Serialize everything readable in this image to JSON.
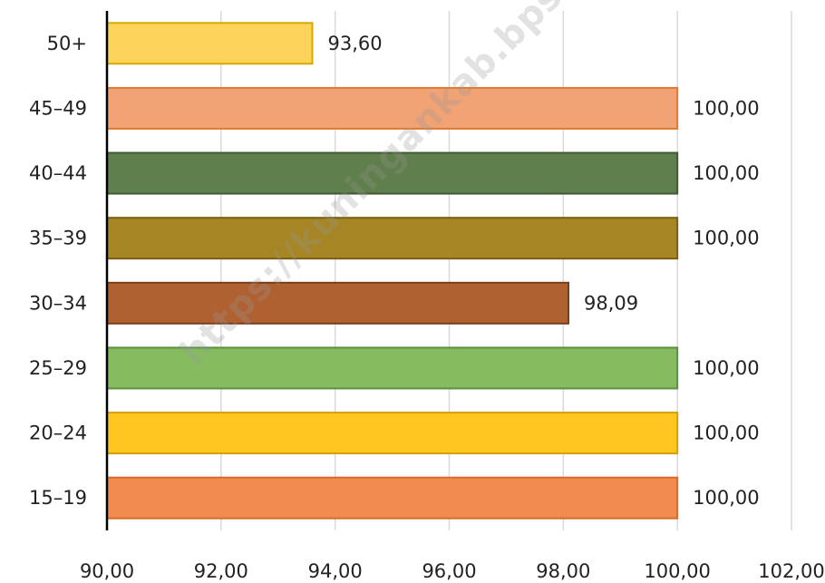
{
  "chart_data": {
    "type": "bar",
    "orientation": "horizontal",
    "categories": [
      "50+",
      "45–49",
      "40–44",
      "35–39",
      "30–34",
      "25–29",
      "20–24",
      "15–19"
    ],
    "values": [
      93.6,
      100.0,
      100.0,
      100.0,
      98.09,
      100.0,
      100.0,
      100.0
    ],
    "value_labels": [
      "93,60",
      "100,00",
      "100,00",
      "100,00",
      "98,09",
      "100,00",
      "100,00",
      "100,00"
    ],
    "colors": [
      "#fdd35a",
      "#f2a375",
      "#5f7f4c",
      "#a68524",
      "#b06132",
      "#86bb60",
      "#ffc720",
      "#f28b4e"
    ],
    "stroke_colors": [
      "#d6a800",
      "#e07a30",
      "#3f5a30",
      "#7a5f10",
      "#7a3d18",
      "#5a9040",
      "#d4a000",
      "#d96a28"
    ],
    "xlim": [
      90,
      102
    ],
    "xticks": [
      "90,00",
      "92,00",
      "94,00",
      "96,00",
      "98,00",
      "100,00",
      "102,00"
    ],
    "xtick_values": [
      90,
      92,
      94,
      96,
      98,
      100,
      102
    ],
    "grid": true,
    "title": "",
    "xlabel": "",
    "ylabel": ""
  },
  "watermark": "https://kuningankab.bps.go.id"
}
